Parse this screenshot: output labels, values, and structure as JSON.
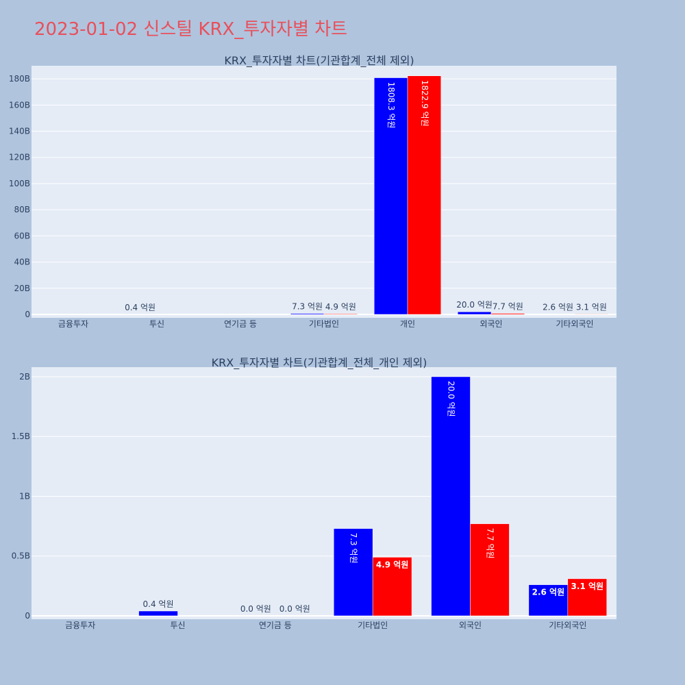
{
  "page_title": "2023-01-02 신스틸 KRX_투자자별 차트",
  "colors": {
    "sell": "#0000ff",
    "buy": "#ff0000",
    "plot_bg": "#e5ecf6",
    "page_bg": "#b0c4de",
    "title": "#e8505b"
  },
  "chart_data": [
    {
      "type": "bar",
      "title": "KRX_투자자별 차트(기관합계_전체 제외)",
      "categories": [
        "금융투자",
        "투신",
        "연기금 등",
        "기타법인",
        "개인",
        "외국인",
        "기타외국인"
      ],
      "series": [
        {
          "values": [
            0,
            0.04,
            0,
            0.73,
            180.83,
            2.0,
            0.26
          ],
          "labels": [
            "",
            "0.4 억원",
            "",
            "7.3 억원",
            "1808.3 억원",
            "20.0 억원",
            "2.6 억원"
          ]
        },
        {
          "values": [
            0,
            0,
            0,
            0.49,
            182.29,
            0.77,
            0.31
          ],
          "labels": [
            "",
            "",
            "",
            "4.9 억원",
            "1822.9 억원",
            "7.7 억원",
            "3.1 억원"
          ]
        }
      ],
      "ylim": [
        0,
        190
      ],
      "yticks": [
        0,
        20,
        40,
        60,
        80,
        100,
        120,
        140,
        160,
        180
      ],
      "ytick_labels": [
        "0",
        "20B",
        "40B",
        "60B",
        "80B",
        "100B",
        "120B",
        "140B",
        "160B",
        "180B"
      ],
      "grid": true
    },
    {
      "type": "bar",
      "title": "KRX_투자자별 차트(기관합계_전체_개인 제외)",
      "categories": [
        "금융투자",
        "투신",
        "연기금 등",
        "기타법인",
        "외국인",
        "기타외국인"
      ],
      "series": [
        {
          "values": [
            0,
            0.04,
            0,
            0.73,
            2.0,
            0.26
          ],
          "labels": [
            "",
            "0.4 억원",
            "0.0 억원",
            "7.3 억원",
            "20.0 억원",
            "2.6 억원"
          ]
        },
        {
          "values": [
            0,
            0,
            0,
            0.49,
            0.77,
            0.31
          ],
          "labels": [
            "",
            "",
            "0.0 억원",
            "4.9 억원",
            "7.7 억원",
            "3.1 억원"
          ]
        }
      ],
      "ylim": [
        0,
        2.08
      ],
      "yticks": [
        0,
        0.5,
        1,
        1.5,
        2
      ],
      "ytick_labels": [
        "0",
        "0.5B",
        "1B",
        "1.5B",
        "2B"
      ],
      "grid": true
    }
  ]
}
